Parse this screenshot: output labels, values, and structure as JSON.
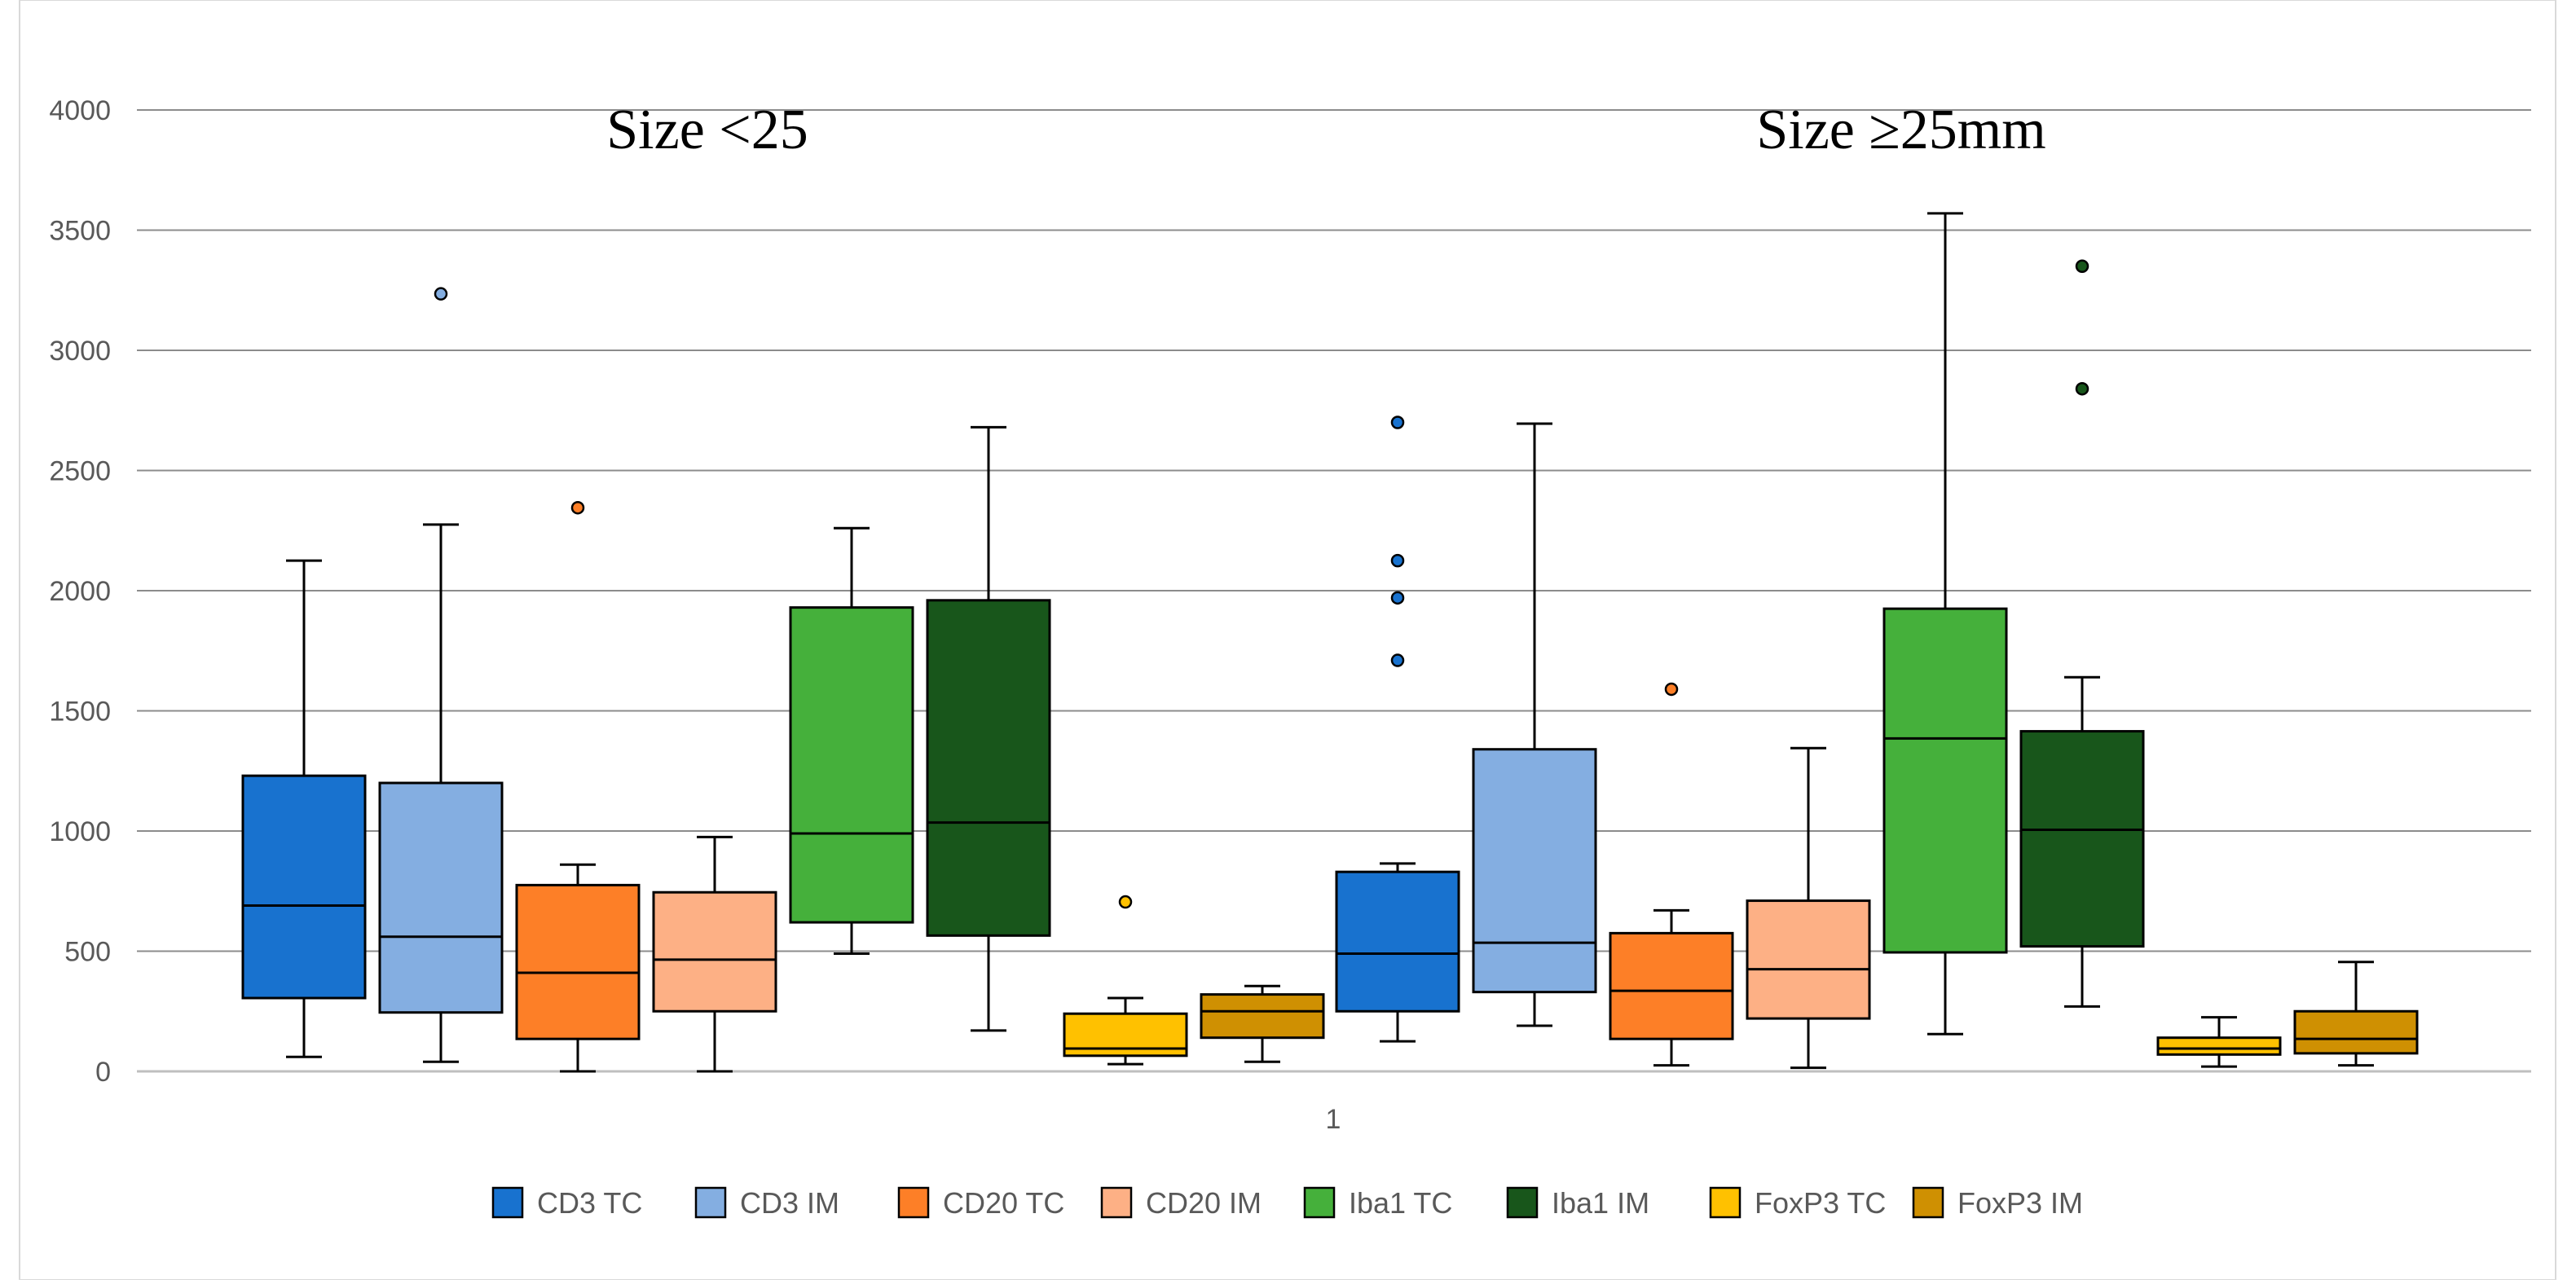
{
  "chart_data": {
    "type": "boxplot",
    "title": "",
    "xlabel": "",
    "ylabel": "",
    "category_label": "1",
    "ylim": [
      0,
      4000
    ],
    "ytick_step": 500,
    "yticks": [
      "0",
      "500",
      "1000",
      "1500",
      "2000",
      "2500",
      "3000",
      "3500",
      "4000"
    ],
    "grid": true,
    "legend_position": "bottom",
    "annotations": [
      {
        "id": "small",
        "text": "Size <25"
      },
      {
        "id": "large",
        "text": "Size ≥25mm"
      }
    ],
    "series": [
      {
        "name": "CD3 TC",
        "color": "#1872CF"
      },
      {
        "name": "CD3 IM",
        "color": "#84AEE1"
      },
      {
        "name": "CD20 TC",
        "color": "#FD7F27"
      },
      {
        "name": "CD20 IM",
        "color": "#FDB085"
      },
      {
        "name": "Iba1 TC",
        "color": "#45B03B"
      },
      {
        "name": "Iba1 IM",
        "color": "#18561B"
      },
      {
        "name": "FoxP3 TC",
        "color": "#FFC100"
      },
      {
        "name": "FoxP3 IM",
        "color": "#CF9002"
      }
    ],
    "groups": [
      {
        "name": "Size <25",
        "boxes": [
          {
            "series": "CD3 TC",
            "min": 60,
            "q1": 305,
            "median": 690,
            "q3": 1230,
            "max": 2125,
            "outliers": []
          },
          {
            "series": "CD3 IM",
            "min": 40,
            "q1": 245,
            "median": 560,
            "q3": 1200,
            "max": 2275,
            "outliers": [
              3235
            ]
          },
          {
            "series": "CD20 TC",
            "min": 0,
            "q1": 135,
            "median": 410,
            "q3": 775,
            "max": 860,
            "outliers": [
              2345
            ]
          },
          {
            "series": "CD20 IM",
            "min": 0,
            "q1": 250,
            "median": 465,
            "q3": 745,
            "max": 975,
            "outliers": []
          },
          {
            "series": "Iba1 TC",
            "min": 490,
            "q1": 620,
            "median": 990,
            "q3": 1930,
            "max": 2260,
            "outliers": []
          },
          {
            "series": "Iba1 IM",
            "min": 170,
            "q1": 565,
            "median": 1035,
            "q3": 1960,
            "max": 2680,
            "outliers": []
          },
          {
            "series": "FoxP3 TC",
            "min": 30,
            "q1": 65,
            "median": 95,
            "q3": 240,
            "max": 305,
            "outliers": [
              705
            ]
          },
          {
            "series": "FoxP3 IM",
            "min": 40,
            "q1": 140,
            "median": 250,
            "q3": 320,
            "max": 355,
            "outliers": []
          }
        ]
      },
      {
        "name": "Size ≥25mm",
        "boxes": [
          {
            "series": "CD3 TC",
            "min": 125,
            "q1": 250,
            "median": 490,
            "q3": 830,
            "max": 865,
            "outliers": [
              1710,
              1970,
              2125,
              2700
            ]
          },
          {
            "series": "CD3 IM",
            "min": 190,
            "q1": 330,
            "median": 535,
            "q3": 1340,
            "max": 2695,
            "outliers": []
          },
          {
            "series": "CD20 TC",
            "min": 25,
            "q1": 135,
            "median": 335,
            "q3": 575,
            "max": 670,
            "outliers": [
              1590
            ]
          },
          {
            "series": "CD20 IM",
            "min": 15,
            "q1": 220,
            "median": 425,
            "q3": 710,
            "max": 1345,
            "outliers": []
          },
          {
            "series": "Iba1 TC",
            "min": 155,
            "q1": 495,
            "median": 1385,
            "q3": 1925,
            "max": 3570,
            "outliers": []
          },
          {
            "series": "Iba1 IM",
            "min": 270,
            "q1": 520,
            "median": 1005,
            "q3": 1415,
            "max": 1640,
            "outliers": [
              2840,
              3350
            ]
          },
          {
            "series": "FoxP3 TC",
            "min": 20,
            "q1": 70,
            "median": 95,
            "q3": 140,
            "max": 225,
            "outliers": []
          },
          {
            "series": "FoxP3 IM",
            "min": 25,
            "q1": 75,
            "median": 135,
            "q3": 250,
            "max": 455,
            "outliers": []
          }
        ]
      }
    ]
  }
}
